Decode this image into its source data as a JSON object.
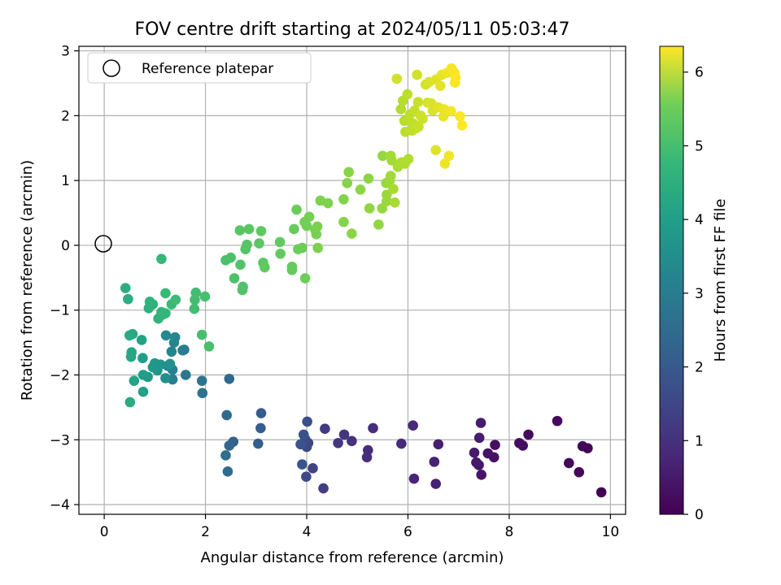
{
  "chart_data": {
    "type": "scatter",
    "title": "FOV centre drift starting at 2024/05/11 05:03:47",
    "xlabel": "Angular distance from reference (arcmin)",
    "ylabel": "Rotation from reference (arcmin)",
    "xlim": [
      -0.5,
      10.3
    ],
    "ylim": [
      -4.15,
      3.07
    ],
    "xticks": [
      0,
      2,
      4,
      6,
      8,
      10
    ],
    "yticks": [
      -4,
      -3,
      -2,
      -1,
      0,
      1,
      2,
      3
    ],
    "grid": true,
    "legend": {
      "placement": "top-left",
      "entries": [
        {
          "label": "Reference platepar",
          "marker": "open-circle"
        }
      ]
    },
    "reference_point": {
      "x": 0,
      "y": 0
    },
    "colorbar": {
      "label": "Hours from first FF file",
      "range": [
        0,
        6.35
      ],
      "ticks": [
        0,
        1,
        2,
        3,
        4,
        5,
        6
      ],
      "colormap": "viridis"
    },
    "points": [
      {
        "x": 9.82,
        "y": -3.81,
        "c": 0.0
      },
      {
        "x": 9.55,
        "y": -3.13,
        "c": 0.06
      },
      {
        "x": 9.45,
        "y": -3.1,
        "c": 0.08
      },
      {
        "x": 9.38,
        "y": -3.5,
        "c": 0.11
      },
      {
        "x": 9.18,
        "y": -3.36,
        "c": 0.14
      },
      {
        "x": 8.95,
        "y": -2.71,
        "c": 0.17
      },
      {
        "x": 8.38,
        "y": -2.92,
        "c": 0.19
      },
      {
        "x": 8.27,
        "y": -3.09,
        "c": 0.22
      },
      {
        "x": 8.2,
        "y": -3.05,
        "c": 0.25
      },
      {
        "x": 7.72,
        "y": -3.08,
        "c": 0.28
      },
      {
        "x": 7.7,
        "y": -3.27,
        "c": 0.31
      },
      {
        "x": 7.58,
        "y": -3.21,
        "c": 0.33
      },
      {
        "x": 7.45,
        "y": -3.54,
        "c": 0.36
      },
      {
        "x": 7.4,
        "y": -3.39,
        "c": 0.39
      },
      {
        "x": 7.35,
        "y": -3.35,
        "c": 0.42
      },
      {
        "x": 7.31,
        "y": -3.2,
        "c": 0.45
      },
      {
        "x": 7.44,
        "y": -2.74,
        "c": 0.48
      },
      {
        "x": 7.41,
        "y": -2.97,
        "c": 0.51
      },
      {
        "x": 6.6,
        "y": -3.07,
        "c": 0.55
      },
      {
        "x": 6.55,
        "y": -3.68,
        "c": 0.58
      },
      {
        "x": 6.52,
        "y": -3.34,
        "c": 0.62
      },
      {
        "x": 6.12,
        "y": -3.6,
        "c": 0.66
      },
      {
        "x": 6.1,
        "y": -2.78,
        "c": 0.7
      },
      {
        "x": 5.87,
        "y": -3.06,
        "c": 0.74
      },
      {
        "x": 5.31,
        "y": -2.82,
        "c": 0.8
      },
      {
        "x": 5.21,
        "y": -3.16,
        "c": 0.84
      },
      {
        "x": 5.19,
        "y": -3.27,
        "c": 0.88
      },
      {
        "x": 4.89,
        "y": -3.02,
        "c": 0.94
      },
      {
        "x": 4.74,
        "y": -2.92,
        "c": 0.98
      },
      {
        "x": 4.62,
        "y": -3.05,
        "c": 1.03
      },
      {
        "x": 4.36,
        "y": -2.83,
        "c": 1.1
      },
      {
        "x": 4.33,
        "y": -3.75,
        "c": 1.16
      },
      {
        "x": 4.12,
        "y": -3.44,
        "c": 1.22
      },
      {
        "x": 4.03,
        "y": -3.05,
        "c": 1.28
      },
      {
        "x": 4.0,
        "y": -3.11,
        "c": 1.34
      },
      {
        "x": 3.99,
        "y": -3.57,
        "c": 1.4
      },
      {
        "x": 3.97,
        "y": -2.99,
        "c": 1.46
      },
      {
        "x": 4.01,
        "y": -2.72,
        "c": 1.52
      },
      {
        "x": 3.94,
        "y": -2.92,
        "c": 1.58
      },
      {
        "x": 3.88,
        "y": -3.07,
        "c": 1.64
      },
      {
        "x": 3.91,
        "y": -3.38,
        "c": 1.7
      },
      {
        "x": 3.1,
        "y": -2.59,
        "c": 1.8
      },
      {
        "x": 3.09,
        "y": -2.82,
        "c": 1.86
      },
      {
        "x": 3.04,
        "y": -3.06,
        "c": 1.92
      },
      {
        "x": 2.55,
        "y": -3.03,
        "c": 2.0
      },
      {
        "x": 2.47,
        "y": -3.09,
        "c": 2.06
      },
      {
        "x": 2.47,
        "y": -2.06,
        "c": 2.14
      },
      {
        "x": 2.42,
        "y": -2.62,
        "c": 2.2
      },
      {
        "x": 2.44,
        "y": -3.49,
        "c": 2.26
      },
      {
        "x": 2.4,
        "y": -3.24,
        "c": 2.32
      },
      {
        "x": 1.94,
        "y": -2.28,
        "c": 2.4
      },
      {
        "x": 1.93,
        "y": -2.09,
        "c": 2.48
      },
      {
        "x": 1.61,
        "y": -2.0,
        "c": 2.55
      },
      {
        "x": 1.58,
        "y": -1.61,
        "c": 2.62
      },
      {
        "x": 1.55,
        "y": -1.62,
        "c": 2.68
      },
      {
        "x": 1.35,
        "y": -2.07,
        "c": 2.72
      },
      {
        "x": 1.35,
        "y": -1.92,
        "c": 2.78
      },
      {
        "x": 1.33,
        "y": -1.64,
        "c": 2.84
      },
      {
        "x": 1.38,
        "y": -1.5,
        "c": 2.9
      },
      {
        "x": 1.4,
        "y": -1.42,
        "c": 2.96
      },
      {
        "x": 1.22,
        "y": -1.39,
        "c": 3.02
      },
      {
        "x": 1.25,
        "y": -1.86,
        "c": 3.08
      },
      {
        "x": 1.21,
        "y": -2.05,
        "c": 3.14
      },
      {
        "x": 1.3,
        "y": -1.83,
        "c": 3.18
      },
      {
        "x": 1.11,
        "y": -1.84,
        "c": 3.24
      },
      {
        "x": 1.05,
        "y": -1.93,
        "c": 3.3
      },
      {
        "x": 1.0,
        "y": -1.82,
        "c": 3.36
      },
      {
        "x": 0.96,
        "y": -1.88,
        "c": 3.4
      },
      {
        "x": 0.86,
        "y": -2.03,
        "c": 3.46
      },
      {
        "x": 0.77,
        "y": -2.0,
        "c": 3.52
      },
      {
        "x": 0.76,
        "y": -1.74,
        "c": 3.58
      },
      {
        "x": 0.77,
        "y": -2.26,
        "c": 3.62
      },
      {
        "x": 0.74,
        "y": -1.46,
        "c": 3.66
      },
      {
        "x": 0.59,
        "y": -2.09,
        "c": 3.7
      },
      {
        "x": 0.54,
        "y": -1.65,
        "c": 3.74
      },
      {
        "x": 0.53,
        "y": -1.72,
        "c": 3.78
      },
      {
        "x": 0.56,
        "y": -1.37,
        "c": 3.82
      },
      {
        "x": 0.5,
        "y": -1.39,
        "c": 3.86
      },
      {
        "x": 0.51,
        "y": -2.42,
        "c": 3.9
      },
      {
        "x": 0.47,
        "y": -0.83,
        "c": 3.94
      },
      {
        "x": 0.42,
        "y": -0.66,
        "c": 3.98
      },
      {
        "x": 0.88,
        "y": -0.97,
        "c": 4.0
      },
      {
        "x": 0.96,
        "y": -0.91,
        "c": 4.04
      },
      {
        "x": 0.9,
        "y": -0.87,
        "c": 4.08
      },
      {
        "x": 1.07,
        "y": -1.13,
        "c": 4.12
      },
      {
        "x": 1.15,
        "y": -1.07,
        "c": 4.15
      },
      {
        "x": 1.13,
        "y": -1.03,
        "c": 4.18
      },
      {
        "x": 1.21,
        "y": -1.05,
        "c": 4.21
      },
      {
        "x": 1.13,
        "y": -0.21,
        "c": 4.24
      },
      {
        "x": 1.21,
        "y": -0.74,
        "c": 4.27
      },
      {
        "x": 1.33,
        "y": -0.91,
        "c": 4.3
      },
      {
        "x": 1.41,
        "y": -0.84,
        "c": 4.34
      },
      {
        "x": 1.81,
        "y": -0.73,
        "c": 4.38
      },
      {
        "x": 1.78,
        "y": -0.98,
        "c": 4.4
      },
      {
        "x": 1.79,
        "y": -0.84,
        "c": 4.42
      },
      {
        "x": 1.99,
        "y": -0.79,
        "c": 4.44
      },
      {
        "x": 1.93,
        "y": -1.38,
        "c": 4.46
      },
      {
        "x": 2.07,
        "y": -1.56,
        "c": 4.48
      },
      {
        "x": 2.4,
        "y": -0.23,
        "c": 4.5
      },
      {
        "x": 2.5,
        "y": -0.19,
        "c": 4.52
      },
      {
        "x": 2.57,
        "y": -0.51,
        "c": 4.54
      },
      {
        "x": 2.74,
        "y": -0.64,
        "c": 4.56
      },
      {
        "x": 2.73,
        "y": -0.69,
        "c": 4.58
      },
      {
        "x": 2.69,
        "y": -0.3,
        "c": 4.6
      },
      {
        "x": 2.79,
        "y": -0.06,
        "c": 4.62
      },
      {
        "x": 2.82,
        "y": 0.01,
        "c": 4.64
      },
      {
        "x": 2.68,
        "y": 0.23,
        "c": 4.66
      },
      {
        "x": 2.86,
        "y": 0.25,
        "c": 4.68
      },
      {
        "x": 3.06,
        "y": 0.03,
        "c": 4.7
      },
      {
        "x": 3.14,
        "y": -0.27,
        "c": 4.72
      },
      {
        "x": 3.17,
        "y": -0.34,
        "c": 4.74
      },
      {
        "x": 3.1,
        "y": 0.22,
        "c": 4.76
      },
      {
        "x": 3.47,
        "y": 0.05,
        "c": 4.78
      },
      {
        "x": 3.48,
        "y": -0.13,
        "c": 4.8
      },
      {
        "x": 3.71,
        "y": -0.38,
        "c": 4.82
      },
      {
        "x": 3.71,
        "y": -0.33,
        "c": 4.84
      },
      {
        "x": 3.75,
        "y": 0.25,
        "c": 4.86
      },
      {
        "x": 3.8,
        "y": 0.55,
        "c": 4.88
      },
      {
        "x": 3.83,
        "y": -0.06,
        "c": 4.9
      },
      {
        "x": 3.91,
        "y": -0.04,
        "c": 4.92
      },
      {
        "x": 3.97,
        "y": -0.51,
        "c": 4.94
      },
      {
        "x": 3.96,
        "y": 0.36,
        "c": 4.96
      },
      {
        "x": 4.0,
        "y": 0.3,
        "c": 4.98
      },
      {
        "x": 4.05,
        "y": 0.44,
        "c": 5.0
      },
      {
        "x": 4.17,
        "y": 0.24,
        "c": 5.02
      },
      {
        "x": 4.19,
        "y": 0.17,
        "c": 5.04
      },
      {
        "x": 4.21,
        "y": 0.29,
        "c": 5.06
      },
      {
        "x": 4.22,
        "y": -0.04,
        "c": 5.08
      },
      {
        "x": 4.27,
        "y": 0.69,
        "c": 5.1
      },
      {
        "x": 4.42,
        "y": 0.65,
        "c": 5.12
      },
      {
        "x": 4.73,
        "y": 0.71,
        "c": 5.14
      },
      {
        "x": 4.73,
        "y": 0.36,
        "c": 5.16
      },
      {
        "x": 4.8,
        "y": 0.96,
        "c": 5.18
      },
      {
        "x": 4.83,
        "y": 1.13,
        "c": 5.2
      },
      {
        "x": 4.89,
        "y": 0.18,
        "c": 5.22
      },
      {
        "x": 5.06,
        "y": 0.86,
        "c": 5.24
      },
      {
        "x": 5.22,
        "y": 1.03,
        "c": 5.26
      },
      {
        "x": 5.24,
        "y": 0.57,
        "c": 5.28
      },
      {
        "x": 5.42,
        "y": 0.32,
        "c": 5.3
      },
      {
        "x": 5.49,
        "y": 0.57,
        "c": 5.32
      },
      {
        "x": 5.5,
        "y": 1.38,
        "c": 5.34
      },
      {
        "x": 5.57,
        "y": 0.96,
        "c": 5.36
      },
      {
        "x": 5.58,
        "y": 0.68,
        "c": 5.38
      },
      {
        "x": 5.58,
        "y": 0.78,
        "c": 5.4
      },
      {
        "x": 5.64,
        "y": 1.0,
        "c": 5.42
      },
      {
        "x": 5.66,
        "y": 1.07,
        "c": 5.44
      },
      {
        "x": 5.66,
        "y": 1.38,
        "c": 5.46
      },
      {
        "x": 5.68,
        "y": 1.31,
        "c": 5.48
      },
      {
        "x": 5.71,
        "y": 0.87,
        "c": 5.5
      },
      {
        "x": 5.74,
        "y": 0.66,
        "c": 5.52
      },
      {
        "x": 5.8,
        "y": 1.21,
        "c": 5.54
      },
      {
        "x": 5.87,
        "y": 1.28,
        "c": 5.56
      },
      {
        "x": 5.94,
        "y": 1.26,
        "c": 5.58
      },
      {
        "x": 6.01,
        "y": 1.33,
        "c": 5.6
      },
      {
        "x": 5.86,
        "y": 2.1,
        "c": 5.62
      },
      {
        "x": 5.9,
        "y": 2.23,
        "c": 5.64
      },
      {
        "x": 5.93,
        "y": 1.92,
        "c": 5.66
      },
      {
        "x": 5.95,
        "y": 1.75,
        "c": 5.68
      },
      {
        "x": 5.99,
        "y": 2.33,
        "c": 5.7
      },
      {
        "x": 6.04,
        "y": 2.02,
        "c": 5.72
      },
      {
        "x": 6.08,
        "y": 1.77,
        "c": 5.74
      },
      {
        "x": 6.1,
        "y": 1.88,
        "c": 5.76
      },
      {
        "x": 6.13,
        "y": 2.08,
        "c": 5.78
      },
      {
        "x": 6.15,
        "y": 1.8,
        "c": 5.8
      },
      {
        "x": 6.2,
        "y": 2.21,
        "c": 5.82
      },
      {
        "x": 6.21,
        "y": 1.83,
        "c": 5.84
      },
      {
        "x": 6.25,
        "y": 2.0,
        "c": 5.86
      },
      {
        "x": 6.29,
        "y": 1.95,
        "c": 5.88
      },
      {
        "x": 5.78,
        "y": 2.57,
        "c": 5.9
      },
      {
        "x": 6.18,
        "y": 2.63,
        "c": 5.92
      },
      {
        "x": 6.35,
        "y": 2.48,
        "c": 5.94
      },
      {
        "x": 6.39,
        "y": 2.2,
        "c": 5.96
      },
      {
        "x": 6.42,
        "y": 2.52,
        "c": 5.98
      },
      {
        "x": 6.46,
        "y": 2.19,
        "c": 6.0
      },
      {
        "x": 6.49,
        "y": 2.08,
        "c": 6.02
      },
      {
        "x": 6.55,
        "y": 1.47,
        "c": 6.04
      },
      {
        "x": 6.56,
        "y": 2.56,
        "c": 6.06
      },
      {
        "x": 6.6,
        "y": 2.13,
        "c": 6.08
      },
      {
        "x": 6.64,
        "y": 2.46,
        "c": 6.1
      },
      {
        "x": 6.67,
        "y": 2.63,
        "c": 6.12
      },
      {
        "x": 6.7,
        "y": 1.99,
        "c": 6.14
      },
      {
        "x": 6.71,
        "y": 2.1,
        "c": 6.16
      },
      {
        "x": 6.73,
        "y": 1.26,
        "c": 6.18
      },
      {
        "x": 6.77,
        "y": 2.66,
        "c": 6.2
      },
      {
        "x": 6.81,
        "y": 1.38,
        "c": 6.22
      },
      {
        "x": 6.85,
        "y": 2.07,
        "c": 6.24
      },
      {
        "x": 6.86,
        "y": 2.73,
        "c": 6.26
      },
      {
        "x": 6.92,
        "y": 2.66,
        "c": 6.28
      },
      {
        "x": 6.93,
        "y": 2.51,
        "c": 6.3
      },
      {
        "x": 7.03,
        "y": 1.99,
        "c": 6.32
      },
      {
        "x": 7.07,
        "y": 1.85,
        "c": 6.34
      },
      {
        "x": 6.94,
        "y": 2.59,
        "c": 6.35
      }
    ]
  }
}
